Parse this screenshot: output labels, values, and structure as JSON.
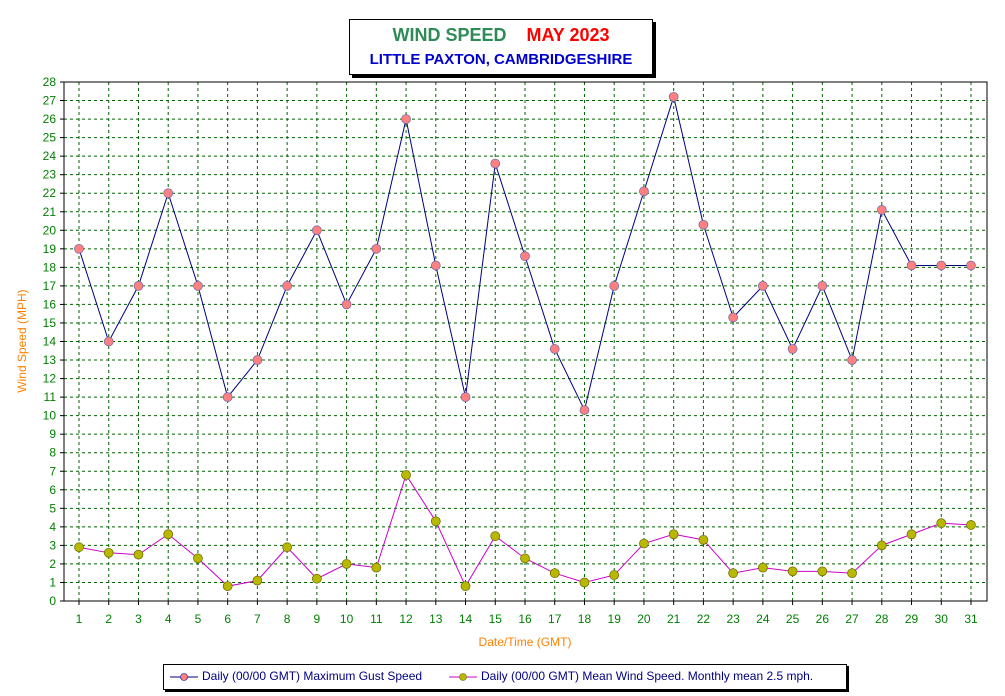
{
  "title": {
    "main": "WIND SPEED",
    "sub": "MAY 2023",
    "location": "LITTLE PAXTON, CAMBRIDGESHIRE"
  },
  "colors": {
    "axis_text": "#008000",
    "axis_label": "#ff8000",
    "grid": "#006400",
    "gust_line": "#000080",
    "gust_marker": "#ff8080",
    "mean_line": "#cc00cc",
    "mean_marker": "#b8b800"
  },
  "chart_data": {
    "type": "line",
    "xlabel": "Date/Time (GMT)",
    "ylabel": "Wind Speed (MPH)",
    "ylim": [
      0,
      28
    ],
    "xlim": [
      1,
      31
    ],
    "grid": true,
    "legend": "bottom",
    "x": [
      1,
      2,
      3,
      4,
      5,
      6,
      7,
      8,
      9,
      10,
      11,
      12,
      13,
      14,
      15,
      16,
      17,
      18,
      19,
      20,
      21,
      22,
      23,
      24,
      25,
      26,
      27,
      28,
      29,
      30,
      31
    ],
    "series": [
      {
        "name": "Daily (00/00 GMT) Maximum Gust Speed",
        "values": [
          19.0,
          14.0,
          17.0,
          22.0,
          17.0,
          11.0,
          13.0,
          17.0,
          20.0,
          16.0,
          19.0,
          26.0,
          18.1,
          11.0,
          23.6,
          18.6,
          13.6,
          10.3,
          17.0,
          22.1,
          27.2,
          20.3,
          15.3,
          17.0,
          13.6,
          17.0,
          13.0,
          21.1,
          18.1,
          18.1,
          18.1
        ]
      },
      {
        "name": "Daily (00/00 GMT) Mean Wind Speed. Monthly mean 2.5 mph.",
        "values": [
          2.9,
          2.6,
          2.5,
          3.6,
          2.3,
          0.8,
          1.1,
          2.9,
          1.2,
          2.0,
          1.8,
          6.8,
          4.3,
          0.8,
          3.5,
          2.3,
          1.5,
          1.0,
          1.4,
          3.1,
          3.6,
          3.3,
          1.5,
          1.8,
          1.6,
          1.6,
          1.5,
          3.0,
          3.6,
          4.2,
          4.1
        ]
      }
    ]
  }
}
